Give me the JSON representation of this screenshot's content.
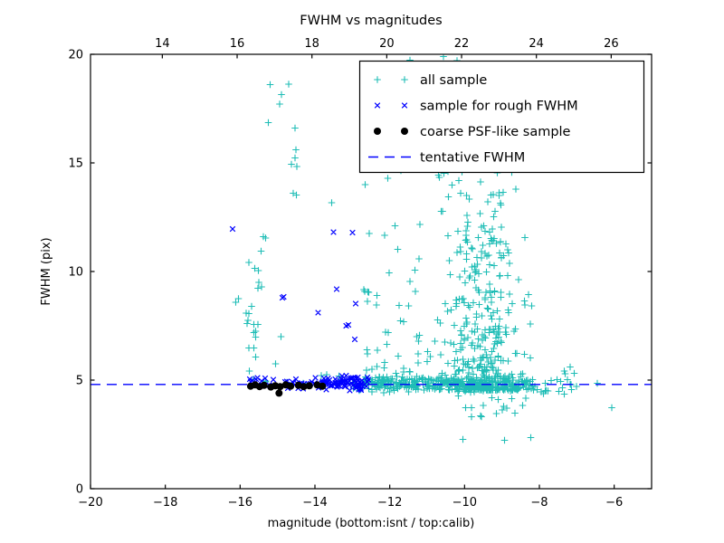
{
  "figure": {
    "title": "FWHM vs magnitudes",
    "xlabel": "magnitude (bottom:isnt / top:calib)",
    "ylabel": "FWHM (pix)",
    "background": "#ffffff"
  },
  "colors": {
    "all_sample": "#1fbdb6",
    "rough_sample": "#0000ff",
    "psf_sample": "#000000",
    "tentative_line": "#0000ff",
    "axis": "#000000"
  },
  "axes": {
    "x_bottom": {
      "min": -20,
      "max": -5,
      "ticks": [
        {
          "v": -20,
          "label": "−20"
        },
        {
          "v": -18,
          "label": "−18"
        },
        {
          "v": -16,
          "label": "−16"
        },
        {
          "v": -14,
          "label": "−14"
        },
        {
          "v": -12,
          "label": "−12"
        },
        {
          "v": -10,
          "label": "−10"
        },
        {
          "v": -8,
          "label": "−8"
        },
        {
          "v": -6,
          "label": "−6"
        }
      ]
    },
    "x_top": {
      "calib_offset": 32.08,
      "ticks": [
        {
          "v": 14,
          "label": "14"
        },
        {
          "v": 16,
          "label": "16"
        },
        {
          "v": 18,
          "label": "18"
        },
        {
          "v": 20,
          "label": "20"
        },
        {
          "v": 22,
          "label": "22"
        },
        {
          "v": 24,
          "label": "24"
        },
        {
          "v": 26,
          "label": "26"
        }
      ]
    },
    "y": {
      "min": 0,
      "max": 20,
      "ticks": [
        {
          "v": 0,
          "label": "0"
        },
        {
          "v": 5,
          "label": "5"
        },
        {
          "v": 10,
          "label": "10"
        },
        {
          "v": 15,
          "label": "15"
        },
        {
          "v": 20,
          "label": "20"
        }
      ]
    }
  },
  "legend": {
    "entries": [
      {
        "label": "all sample",
        "marker": "plus",
        "color": "#1fbdb6"
      },
      {
        "label": "sample for rough FWHM",
        "marker": "x",
        "color": "#0000ff"
      },
      {
        "label": "coarse PSF-like sample",
        "marker": "dot",
        "color": "#000000"
      },
      {
        "label": "tentative FWHM",
        "marker": "dashed-line",
        "color": "#0000ff"
      }
    ]
  },
  "chart_data": {
    "type": "scatter",
    "title": "FWHM vs magnitudes",
    "xlabel": "magnitude (bottom:isnt / top:calib)",
    "ylabel": "FWHM (pix)",
    "xlim": [
      -20,
      -5
    ],
    "ylim": [
      0,
      20
    ],
    "grid": false,
    "legend_position": "upper right",
    "series": [
      {
        "name": "all sample",
        "marker": "plus",
        "color": "#1fbdb6",
        "points": [
          [
            -11.46,
            19.72
          ],
          [
            -10.56,
            19.89
          ],
          [
            -10.2,
            19.7
          ],
          [
            -15.2,
            18.61
          ],
          [
            -14.7,
            18.63
          ],
          [
            -14.89,
            18.15
          ],
          [
            -14.94,
            17.71
          ],
          [
            -15.24,
            16.86
          ],
          [
            -14.53,
            16.61
          ],
          [
            -14.51,
            15.6
          ],
          [
            -14.53,
            15.22
          ],
          [
            -14.63,
            14.93
          ],
          [
            -14.48,
            14.83
          ],
          [
            -14.58,
            13.6
          ],
          [
            -14.49,
            13.53
          ],
          [
            -13.55,
            13.17
          ],
          [
            -12.66,
            14.0
          ],
          [
            -12.05,
            14.3
          ],
          [
            -11.7,
            14.65
          ],
          [
            -15.38,
            11.61
          ],
          [
            -15.32,
            11.55
          ],
          [
            -15.44,
            10.93
          ],
          [
            -15.77,
            10.42
          ],
          [
            -15.61,
            10.14
          ],
          [
            -15.51,
            10.05
          ],
          [
            -15.5,
            9.51
          ],
          [
            -15.52,
            9.22
          ],
          [
            -15.43,
            9.29
          ],
          [
            -16.04,
            8.75
          ],
          [
            -16.12,
            8.58
          ],
          [
            -15.69,
            8.4
          ],
          [
            -15.77,
            8.06
          ],
          [
            -15.84,
            8.08
          ],
          [
            -15.79,
            7.76
          ],
          [
            -15.82,
            7.61
          ],
          [
            -15.63,
            7.57
          ],
          [
            -15.53,
            7.57
          ],
          [
            -15.59,
            7.26
          ],
          [
            -15.63,
            7.19
          ],
          [
            -15.59,
            6.97
          ],
          [
            -14.91,
            6.99
          ],
          [
            -15.77,
            6.47
          ],
          [
            -15.63,
            6.47
          ],
          [
            -15.58,
            6.07
          ],
          [
            -15.05,
            5.74
          ],
          [
            -15.75,
            5.42
          ],
          [
            -12.69,
            9.17
          ],
          [
            -6.45,
            4.86
          ],
          [
            -6.06,
            3.72
          ],
          [
            -8.23,
            2.36
          ],
          [
            -8.93,
            2.22
          ],
          [
            -10.05,
            2.28
          ],
          [
            -8.96,
            3.79
          ],
          [
            -9.57,
            3.36
          ],
          [
            -8.36,
            4.17
          ],
          [
            -7.25,
            5.02
          ],
          [
            -7.15,
            4.8
          ],
          [
            -7.18,
            5.6
          ],
          [
            -7.33,
            4.35
          ]
        ],
        "clusters": [
          {
            "n": 270,
            "seed": 11,
            "x": {
              "dist": "uniform",
              "min": -12.7,
              "max": -8.25
            },
            "y": {
              "dist": "normal",
              "mean": 4.82,
              "sd": 0.16,
              "min": 4.35,
              "max": 5.4
            }
          },
          {
            "n": 22,
            "seed": 12,
            "x": {
              "dist": "uniform",
              "min": -8.25,
              "max": -7.0
            },
            "y": {
              "dist": "normal",
              "mean": 4.85,
              "sd": 0.24,
              "min": 4.2,
              "max": 5.5
            }
          },
          {
            "n": 430,
            "seed": 13,
            "x": {
              "dist": "normal",
              "mean": -9.55,
              "sd": 0.62,
              "min": -11.15,
              "max": -8.15
            },
            "y": {
              "dist": "power",
              "base": 4.55,
              "scale": 7.6,
              "exp": 2.6
            }
          },
          {
            "n": 30,
            "seed": 14,
            "x": {
              "dist": "normal",
              "mean": -9.7,
              "sd": 0.65,
              "min": -11.1,
              "max": -8.55
            },
            "y": {
              "dist": "uniform",
              "min": 12.1,
              "max": 14.7
            }
          },
          {
            "n": 55,
            "seed": 15,
            "x": {
              "dist": "uniform",
              "min": -12.7,
              "max": -11.15
            },
            "y": {
              "dist": "power",
              "base": 4.9,
              "scale": 7.5,
              "exp": 1.8
            }
          },
          {
            "n": 14,
            "seed": 16,
            "x": {
              "dist": "uniform",
              "min": -10.6,
              "max": -8.3
            },
            "y": {
              "dist": "uniform",
              "min": 3.3,
              "max": 4.35
            }
          },
          {
            "n": 6,
            "seed": 17,
            "x": {
              "dist": "uniform",
              "min": -13.05,
              "max": -12.7
            },
            "y": {
              "dist": "normal",
              "mean": 4.85,
              "sd": 0.18
            }
          },
          {
            "n": 8,
            "seed": 18,
            "x": {
              "dist": "uniform",
              "min": -15.9,
              "max": -13.0
            },
            "y": {
              "dist": "normal",
              "mean": 5.05,
              "sd": 0.15
            }
          }
        ]
      },
      {
        "name": "sample for rough FWHM",
        "marker": "x",
        "color": "#0000ff",
        "points": [
          [
            -16.2,
            11.95
          ],
          [
            -13.5,
            11.82
          ],
          [
            -12.99,
            11.79
          ],
          [
            -14.87,
            8.8
          ],
          [
            -14.83,
            8.84
          ],
          [
            -13.92,
            8.1
          ],
          [
            -13.42,
            9.18
          ],
          [
            -13.17,
            7.5
          ],
          [
            -13.1,
            7.54
          ],
          [
            -12.94,
            6.88
          ],
          [
            -12.91,
            8.52
          ]
        ],
        "clusters": [
          {
            "n": 60,
            "seed": 21,
            "x": {
              "dist": "uniform",
              "min": -15.75,
              "max": -12.5
            },
            "y": {
              "dist": "normal",
              "mean": 4.9,
              "sd": 0.16,
              "min": 4.5,
              "max": 5.4
            }
          },
          {
            "n": 65,
            "seed": 22,
            "x": {
              "dist": "normal",
              "mean": -13.3,
              "sd": 0.55,
              "min": -14.8,
              "max": -12.45
            },
            "y": {
              "dist": "normal",
              "mean": 4.88,
              "sd": 0.15,
              "min": 4.5,
              "max": 5.35
            }
          }
        ]
      },
      {
        "name": "coarse PSF-like sample",
        "marker": "dot",
        "color": "#000000",
        "points": [
          [
            -15.72,
            4.72
          ],
          [
            -15.6,
            4.78
          ],
          [
            -15.48,
            4.7
          ],
          [
            -15.36,
            4.76
          ],
          [
            -15.18,
            4.68
          ],
          [
            -15.06,
            4.74
          ],
          [
            -14.93,
            4.7
          ],
          [
            -14.78,
            4.78
          ],
          [
            -14.65,
            4.72
          ],
          [
            -14.44,
            4.76
          ],
          [
            -14.3,
            4.7
          ],
          [
            -14.15,
            4.74
          ],
          [
            -13.94,
            4.78
          ],
          [
            -13.8,
            4.72
          ],
          [
            -14.96,
            4.4
          ]
        ],
        "clusters": []
      },
      {
        "name": "tentative FWHM",
        "type": "hline",
        "y": 4.8,
        "style": "dashed",
        "color": "#0000ff"
      }
    ]
  }
}
